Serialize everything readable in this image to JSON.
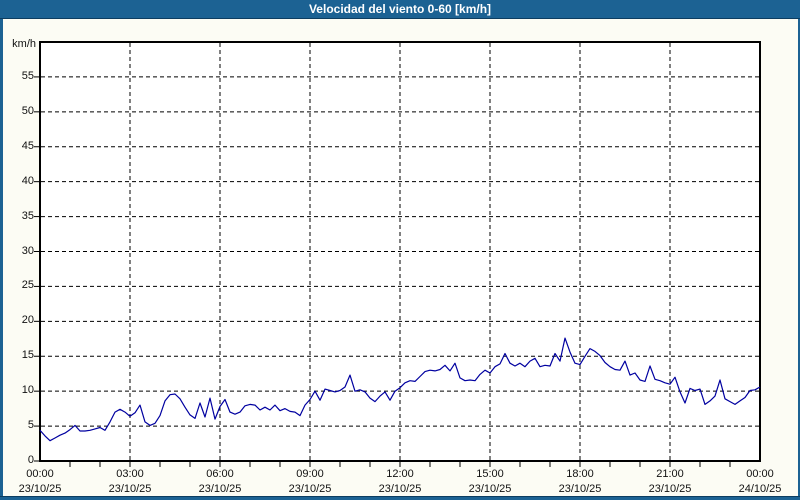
{
  "title_bar": {
    "title": "Velocidad del viento 0-60 [km/h]"
  },
  "colors": {
    "frame": "#1c6293",
    "frame_dark": "#0d3d60",
    "background": "#fcfcf4",
    "plot_background": "#ffffff",
    "grid": "#000000",
    "series": "#0000a0",
    "title_text": "#ffffff",
    "label_text": "#111111"
  },
  "chart_data": {
    "type": "line",
    "title": "Velocidad del viento 0-60 [km/h]",
    "ylabel": "km/h",
    "xlabel": "",
    "ylim": [
      0,
      60
    ],
    "xlim_hours": [
      0,
      24
    ],
    "grid": "dashed",
    "legend": "none",
    "y_ticks": [
      0,
      5,
      10,
      15,
      20,
      25,
      30,
      35,
      40,
      45,
      50,
      55
    ],
    "x_ticks": [
      {
        "hour": 0,
        "time": "00:00",
        "date": "23/10/25"
      },
      {
        "hour": 3,
        "time": "03:00",
        "date": "23/10/25"
      },
      {
        "hour": 6,
        "time": "06:00",
        "date": "23/10/25"
      },
      {
        "hour": 9,
        "time": "09:00",
        "date": "23/10/25"
      },
      {
        "hour": 12,
        "time": "12:00",
        "date": "23/10/25"
      },
      {
        "hour": 15,
        "time": "15:00",
        "date": "23/10/25"
      },
      {
        "hour": 18,
        "time": "18:00",
        "date": "23/10/25"
      },
      {
        "hour": 21,
        "time": "21:00",
        "date": "23/10/25"
      },
      {
        "hour": 24,
        "time": "00:00",
        "date": "24/10/25"
      }
    ],
    "minor_tick_every_hours": 1,
    "series": [
      {
        "name": "Velocidad del viento",
        "color": "#0000a0",
        "x_start_minute": 0,
        "x_step_minutes": 10,
        "values": [
          4.4,
          3.6,
          2.9,
          3.3,
          3.7,
          4.0,
          4.5,
          5.1,
          4.3,
          4.3,
          4.4,
          4.6,
          4.8,
          4.4,
          5.6,
          7.0,
          7.4,
          7.0,
          6.4,
          6.9,
          8.0,
          5.6,
          5.1,
          5.4,
          6.5,
          8.6,
          9.5,
          9.6,
          8.9,
          7.7,
          6.6,
          6.1,
          8.3,
          6.3,
          9.0,
          6.0,
          7.8,
          8.8,
          7.0,
          6.7,
          7.0,
          7.9,
          8.1,
          8.0,
          7.3,
          7.7,
          7.3,
          8.0,
          7.2,
          7.5,
          7.1,
          7.0,
          6.5,
          8.0,
          8.8,
          10.0,
          8.7,
          10.3,
          10.1,
          9.9,
          10.1,
          10.6,
          12.3,
          10.0,
          10.2,
          9.9,
          9.0,
          8.5,
          9.3,
          9.9,
          8.7,
          10.0,
          10.5,
          11.2,
          11.5,
          11.4,
          12.1,
          12.8,
          13.0,
          12.9,
          13.1,
          13.7,
          12.9,
          14.0,
          11.9,
          11.5,
          11.6,
          11.5,
          12.4,
          13.0,
          12.6,
          13.5,
          13.9,
          15.4,
          14.0,
          13.6,
          14.0,
          13.5,
          14.3,
          14.7,
          13.5,
          13.7,
          13.6,
          15.4,
          14.3,
          17.6,
          15.6,
          14.0,
          13.8,
          15.0,
          16.1,
          15.7,
          15.1,
          14.1,
          13.5,
          13.1,
          13.0,
          14.3,
          12.3,
          12.6,
          11.6,
          11.4,
          13.6,
          11.7,
          11.5,
          11.2,
          11.0,
          12.0,
          9.9,
          8.3,
          10.4,
          10.1,
          10.3,
          8.1,
          8.6,
          9.3,
          11.6,
          8.9,
          8.5,
          8.1,
          8.6,
          9.1,
          10.1,
          10.2,
          10.6
        ]
      }
    ]
  }
}
